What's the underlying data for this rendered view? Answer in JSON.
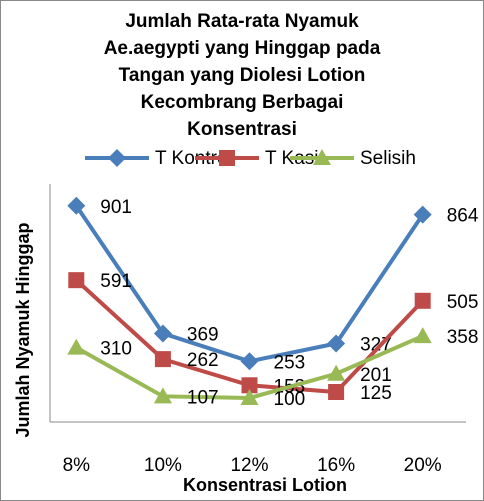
{
  "chart_data": {
    "type": "line",
    "title": [
      "Jumlah Rata-rata Nyamuk",
      "Ae.aegypti yang Hinggap pada",
      "Tangan yang Diolesi Lotion",
      "Kecombrang Berbagai",
      "Konsentrasi"
    ],
    "x_label": "Konsentrasi Lotion",
    "y_label": "Jumlah Nyamuk Hinggap",
    "categories": [
      "8%",
      "10%",
      "12%",
      "16%",
      "20%"
    ],
    "ylim": [
      0,
      1000
    ],
    "series": [
      {
        "name": "T Kontrol",
        "color": "#4a7ebb",
        "marker": "diamond",
        "values": [
          901,
          369,
          253,
          327,
          864
        ]
      },
      {
        "name": "T Kasi",
        "color": "#be4b48",
        "marker": "square",
        "values": [
          591,
          262,
          153,
          125,
          505
        ]
      },
      {
        "name": "Selisih",
        "color": "#98b954",
        "marker": "triangle",
        "values": [
          310,
          107,
          100,
          201,
          358
        ]
      }
    ]
  }
}
